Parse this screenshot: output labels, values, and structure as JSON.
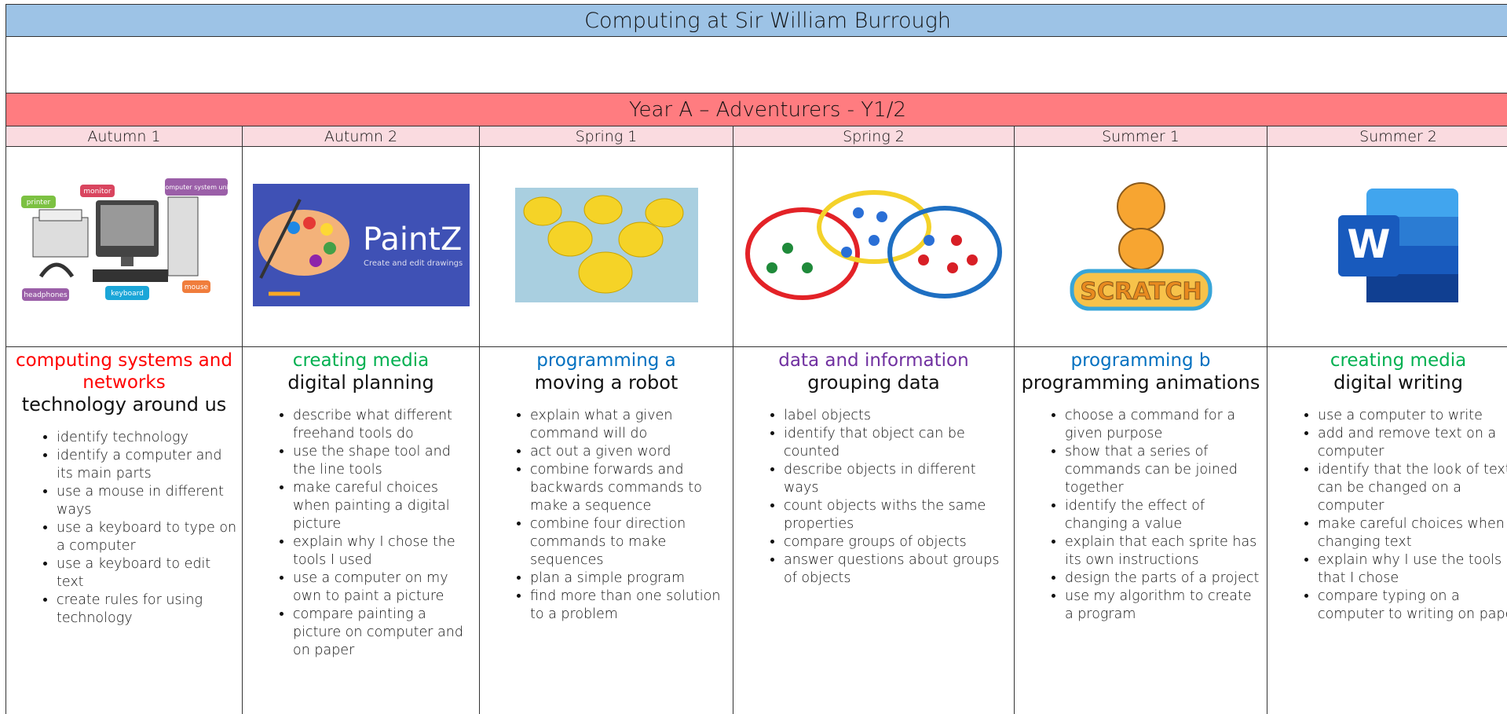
{
  "header": {
    "title": "Computing at Sir William Burrough",
    "year": "Year A – Adventurers - Y1/2"
  },
  "columns": [
    {
      "term": "Autumn 1",
      "topic": "computing systems and networks",
      "topic_color": "#ff0000",
      "unit": "technology around us",
      "image_labels": [
        "printer",
        "monitor",
        "computer system unit",
        "headphones",
        "keyboard",
        "mouse"
      ],
      "bullets": [
        "identify technology",
        "identify a computer and its main parts",
        "use a mouse in different ways",
        "use a keyboard to type on a computer",
        "use a keyboard to edit text",
        "create rules for using technology"
      ]
    },
    {
      "term": "Autumn 2",
      "topic": "creating media",
      "topic_color": "#00b050",
      "unit": "digital planning",
      "image_labels": [
        "PaintZ",
        "Create and edit drawings"
      ],
      "bullets": [
        "describe what different freehand tools do",
        "use the shape tool and the line tools",
        "make careful choices when painting a digital picture",
        "explain why I chose the tools I used",
        "use a computer on my own to paint a picture",
        "compare painting a picture on computer and on paper"
      ]
    },
    {
      "term": "Spring 1",
      "topic": "programming a",
      "topic_color": "#0070c0",
      "unit": "moving a robot",
      "bullets": [
        "explain what a given command will do",
        "act out a given word",
        "combine forwards and backwards commands to make a sequence",
        "combine four direction commands to make sequences",
        "plan a simple program",
        "find more than one solution to a problem"
      ]
    },
    {
      "term": "Spring 2",
      "topic": "data and information",
      "topic_color": "#7030a0",
      "unit": "grouping data",
      "bullets": [
        "label objects",
        "identify that object can be counted",
        "describe objects in different ways",
        "count objects withs the same properties",
        "compare groups of objects",
        "answer questions about groups of objects"
      ]
    },
    {
      "term": "Summer 1",
      "topic": "programming b",
      "topic_color": "#0070c0",
      "unit": "programming animations",
      "image_labels": [
        "SCRATCH"
      ],
      "bullets": [
        "choose a command for a given purpose",
        "show that a series of commands can be joined together",
        "identify the effect of changing a value",
        "explain that each sprite has its own instructions",
        "design the parts of a project",
        "use my algorithm to create a program"
      ]
    },
    {
      "term": "Summer 2",
      "topic": "creating media",
      "topic_color": "#00b050",
      "unit": "digital writing",
      "image_labels": [
        "W"
      ],
      "bullets": [
        "use a computer to write",
        "add and remove text on a computer",
        "identify that the look of text can be changed on a computer",
        "make careful choices when changing text",
        "explain why I use the tools that I chose",
        "compare typing on a computer to writing on paper"
      ]
    }
  ]
}
